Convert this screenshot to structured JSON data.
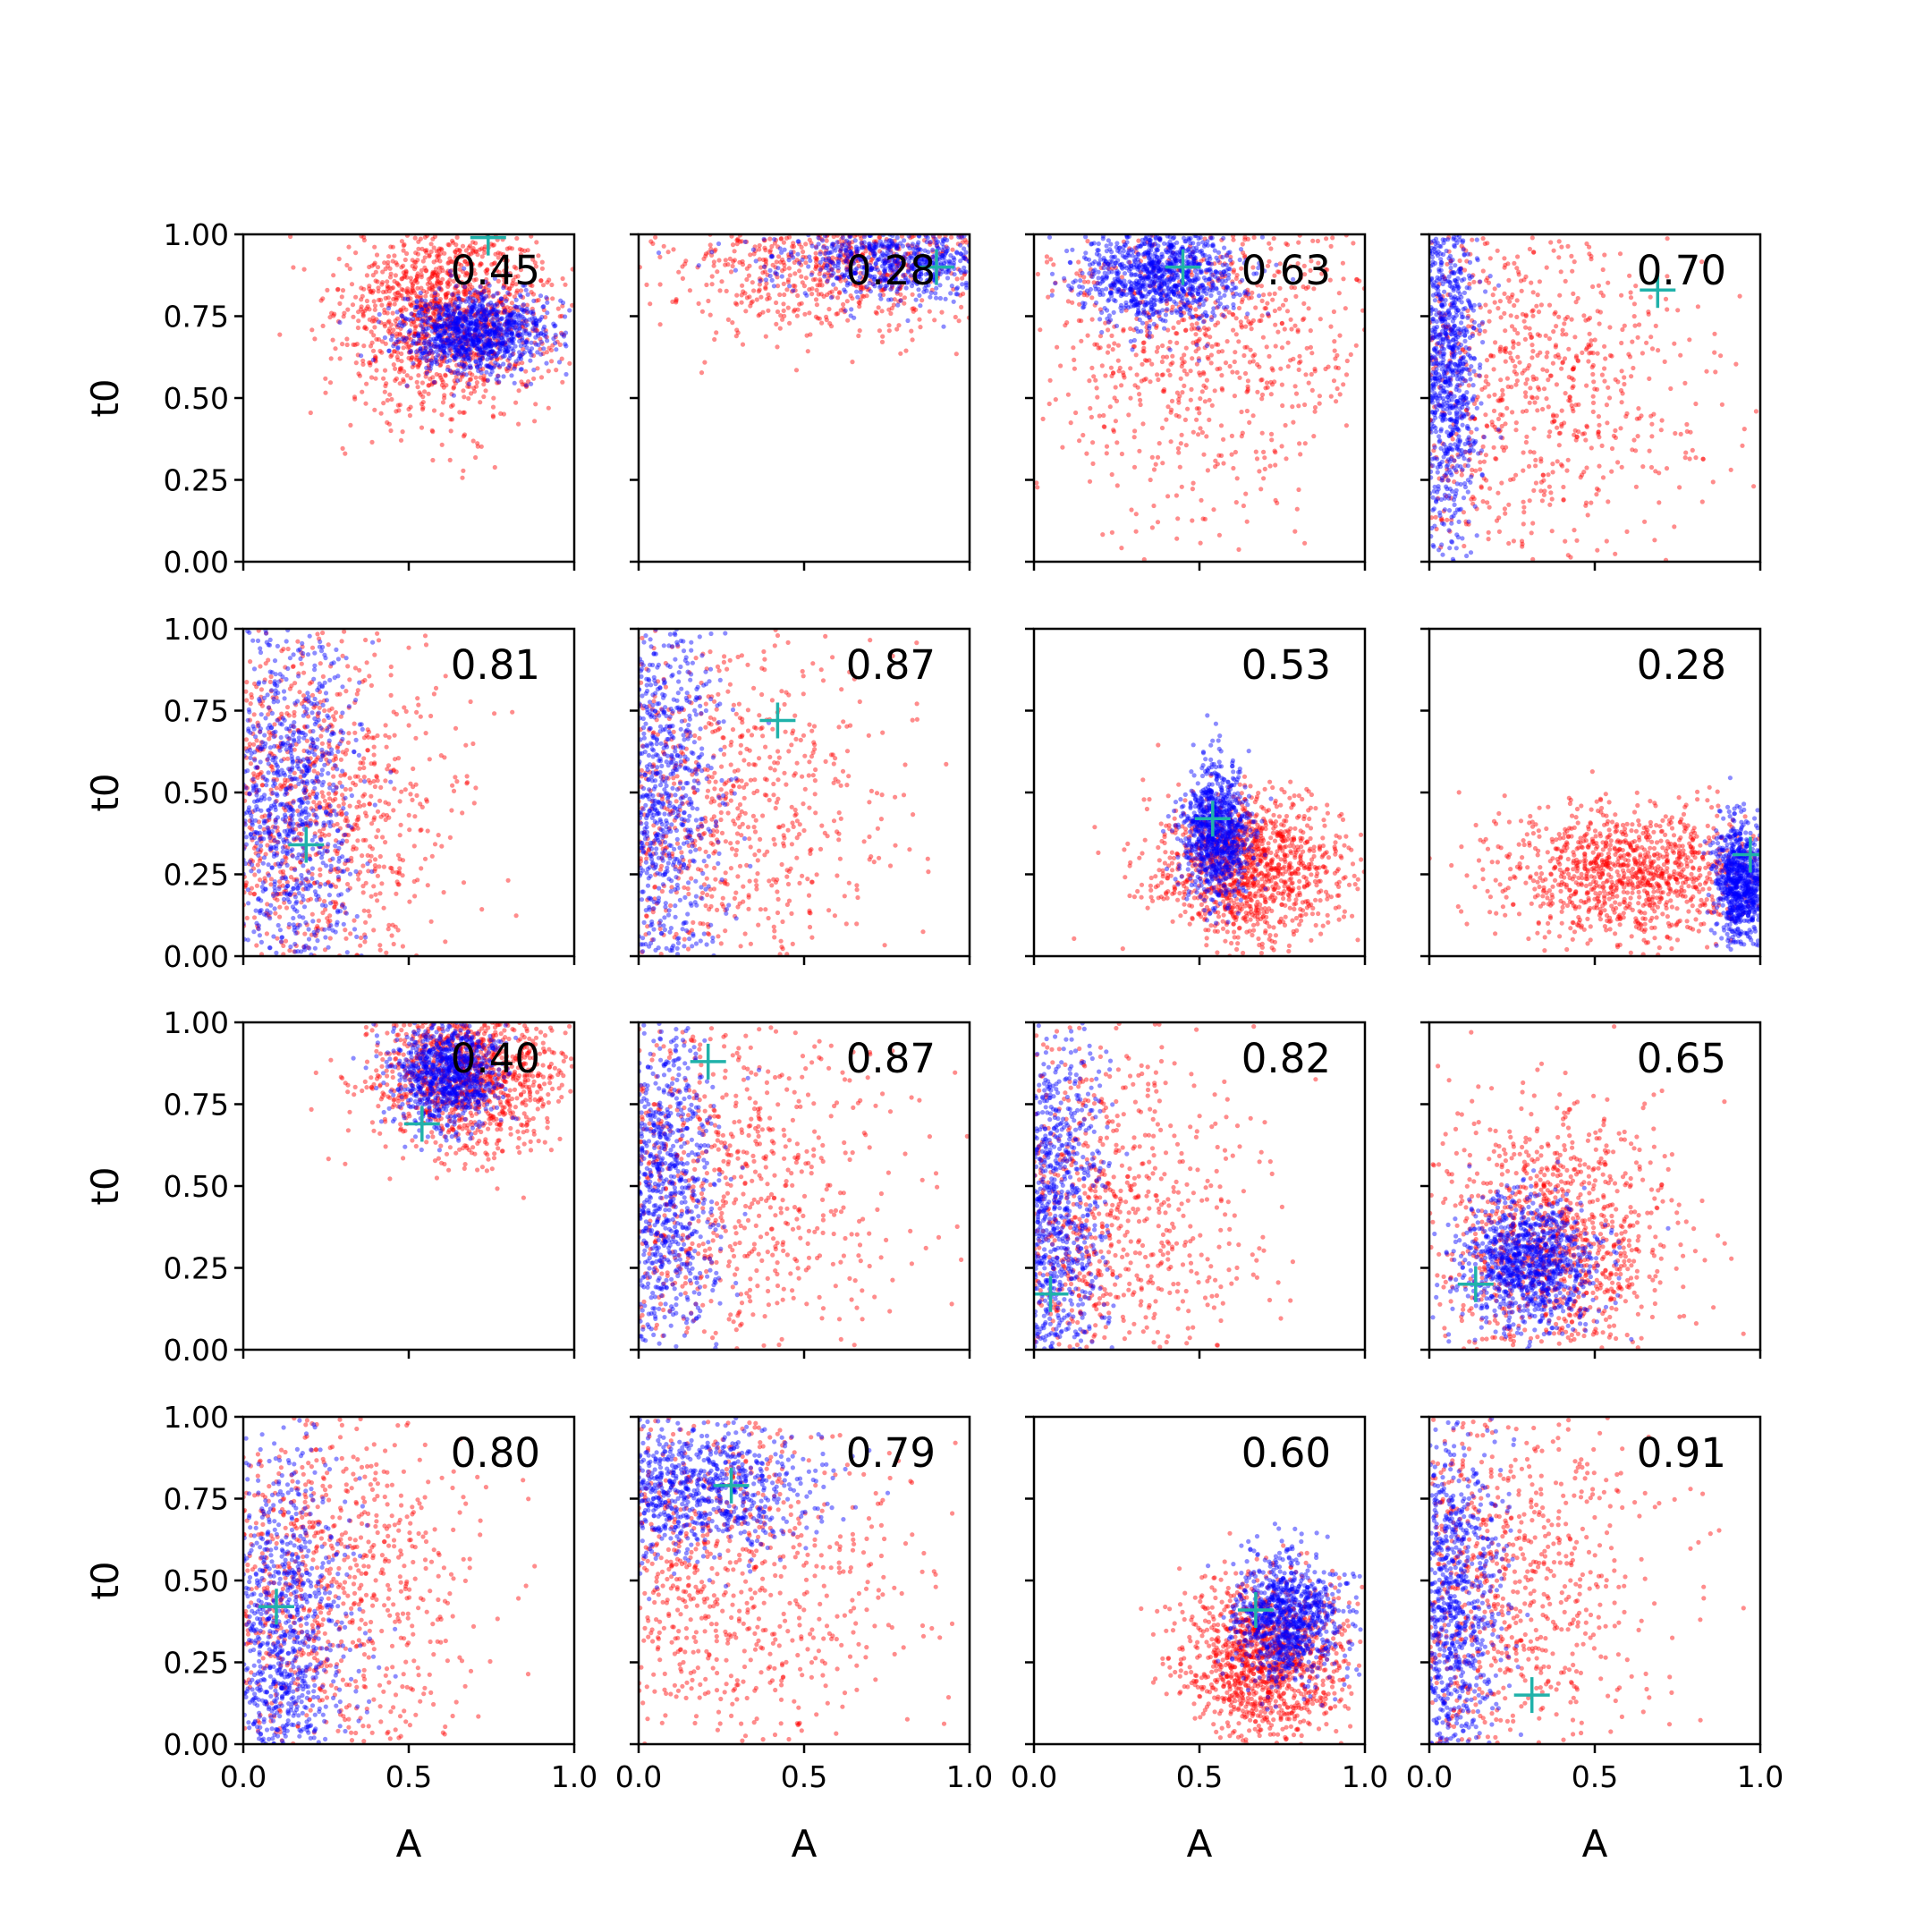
{
  "chart_data": {
    "type": "scatter",
    "layout": {
      "rows": 4,
      "cols": 4,
      "sharex": true,
      "sharey": true
    },
    "xlabel": "A",
    "ylabel": "t0",
    "xlim": [
      0,
      1
    ],
    "ylim": [
      0,
      1
    ],
    "xticks": [
      0.0,
      0.5,
      1.0
    ],
    "xtick_labels": [
      "0.0",
      "0.5",
      "1.0"
    ],
    "yticks": [
      0.0,
      0.25,
      0.5,
      0.75,
      1.0
    ],
    "ytick_labels": [
      "0.00",
      "0.25",
      "0.50",
      "0.75",
      "1.00"
    ],
    "grid": false,
    "legend": "none",
    "colors": {
      "series_a": "#ff0000",
      "series_b": "#0000ff",
      "marker": "#20b2aa",
      "axes": "#000000"
    },
    "series_colors_note": "two overlaid point clouds per panel (red, blue) plus a cyan '+' true-value marker",
    "panels": [
      {
        "label": "0.45",
        "marker": [
          0.74,
          0.99
        ],
        "red": {
          "cx": 0.62,
          "cy": 0.76,
          "sx": 0.16,
          "sy": 0.15,
          "n": 1400
        },
        "blue": {
          "cx": 0.7,
          "cy": 0.7,
          "sx": 0.11,
          "sy": 0.06,
          "n": 1000
        }
      },
      {
        "label": "0.28",
        "marker": [
          0.9,
          0.9
        ],
        "red": {
          "cx": 0.6,
          "cy": 0.93,
          "sx": 0.25,
          "sy": 0.12,
          "n": 900
        },
        "blue": {
          "cx": 0.78,
          "cy": 0.92,
          "sx": 0.18,
          "sy": 0.06,
          "n": 700
        }
      },
      {
        "label": "0.63",
        "marker": [
          0.45,
          0.9
        ],
        "red": {
          "cx": 0.5,
          "cy": 0.7,
          "sx": 0.28,
          "sy": 0.28,
          "n": 900
        },
        "blue": {
          "cx": 0.38,
          "cy": 0.88,
          "sx": 0.12,
          "sy": 0.08,
          "n": 1000
        }
      },
      {
        "label": "0.70",
        "marker": [
          0.69,
          0.83
        ],
        "red": {
          "cx": 0.25,
          "cy": 0.55,
          "sx": 0.3,
          "sy": 0.3,
          "n": 1000
        },
        "blue": {
          "cx": 0.05,
          "cy": 0.6,
          "sx": 0.05,
          "sy": 0.3,
          "n": 1000
        }
      },
      {
        "label": "0.81",
        "marker": [
          0.19,
          0.34
        ],
        "red": {
          "cx": 0.18,
          "cy": 0.45,
          "sx": 0.22,
          "sy": 0.28,
          "n": 1100
        },
        "blue": {
          "cx": 0.14,
          "cy": 0.45,
          "sx": 0.1,
          "sy": 0.28,
          "n": 900
        }
      },
      {
        "label": "0.87",
        "marker": [
          0.42,
          0.72
        ],
        "red": {
          "cx": 0.15,
          "cy": 0.45,
          "sx": 0.3,
          "sy": 0.3,
          "n": 1100
        },
        "blue": {
          "cx": 0.05,
          "cy": 0.5,
          "sx": 0.1,
          "sy": 0.3,
          "n": 1000
        }
      },
      {
        "label": "0.53",
        "marker": [
          0.54,
          0.42
        ],
        "red": {
          "cx": 0.65,
          "cy": 0.27,
          "sx": 0.14,
          "sy": 0.11,
          "n": 1200
        },
        "blue": {
          "cx": 0.55,
          "cy": 0.38,
          "sx": 0.05,
          "sy": 0.1,
          "n": 900
        }
      },
      {
        "label": "0.28",
        "marker": [
          0.97,
          0.31
        ],
        "red": {
          "cx": 0.6,
          "cy": 0.25,
          "sx": 0.2,
          "sy": 0.1,
          "n": 1100
        },
        "blue": {
          "cx": 0.94,
          "cy": 0.22,
          "sx": 0.04,
          "sy": 0.09,
          "n": 800
        }
      },
      {
        "label": "0.40",
        "marker": [
          0.54,
          0.69
        ],
        "red": {
          "cx": 0.68,
          "cy": 0.85,
          "sx": 0.15,
          "sy": 0.12,
          "n": 1200
        },
        "blue": {
          "cx": 0.62,
          "cy": 0.85,
          "sx": 0.08,
          "sy": 0.08,
          "n": 900
        }
      },
      {
        "label": "0.87",
        "marker": [
          0.21,
          0.88
        ],
        "red": {
          "cx": 0.18,
          "cy": 0.5,
          "sx": 0.3,
          "sy": 0.3,
          "n": 1100
        },
        "blue": {
          "cx": 0.06,
          "cy": 0.5,
          "sx": 0.09,
          "sy": 0.3,
          "n": 1000
        }
      },
      {
        "label": "0.82",
        "marker": [
          0.05,
          0.17
        ],
        "red": {
          "cx": 0.14,
          "cy": 0.4,
          "sx": 0.25,
          "sy": 0.28,
          "n": 1100
        },
        "blue": {
          "cx": 0.05,
          "cy": 0.4,
          "sx": 0.08,
          "sy": 0.3,
          "n": 1000
        }
      },
      {
        "label": "0.65",
        "marker": [
          0.14,
          0.2
        ],
        "red": {
          "cx": 0.38,
          "cy": 0.34,
          "sx": 0.17,
          "sy": 0.2,
          "n": 1100
        },
        "blue": {
          "cx": 0.3,
          "cy": 0.26,
          "sx": 0.1,
          "sy": 0.1,
          "n": 1000
        }
      },
      {
        "label": "0.80",
        "marker": [
          0.1,
          0.42
        ],
        "red": {
          "cx": 0.2,
          "cy": 0.45,
          "sx": 0.24,
          "sy": 0.3,
          "n": 1100
        },
        "blue": {
          "cx": 0.12,
          "cy": 0.3,
          "sx": 0.1,
          "sy": 0.28,
          "n": 1000
        }
      },
      {
        "label": "0.79",
        "marker": [
          0.28,
          0.79
        ],
        "red": {
          "cx": 0.2,
          "cy": 0.55,
          "sx": 0.3,
          "sy": 0.3,
          "n": 1100
        },
        "blue": {
          "cx": 0.12,
          "cy": 0.78,
          "sx": 0.2,
          "sy": 0.1,
          "n": 1000
        }
      },
      {
        "label": "0.60",
        "marker": [
          0.67,
          0.41
        ],
        "red": {
          "cx": 0.7,
          "cy": 0.26,
          "sx": 0.12,
          "sy": 0.12,
          "n": 1200
        },
        "blue": {
          "cx": 0.77,
          "cy": 0.38,
          "sx": 0.08,
          "sy": 0.09,
          "n": 900
        }
      },
      {
        "label": "0.91",
        "marker": [
          0.31,
          0.15
        ],
        "red": {
          "cx": 0.15,
          "cy": 0.45,
          "sx": 0.25,
          "sy": 0.3,
          "n": 1100
        },
        "blue": {
          "cx": 0.06,
          "cy": 0.4,
          "sx": 0.08,
          "sy": 0.3,
          "n": 1000
        }
      }
    ]
  }
}
